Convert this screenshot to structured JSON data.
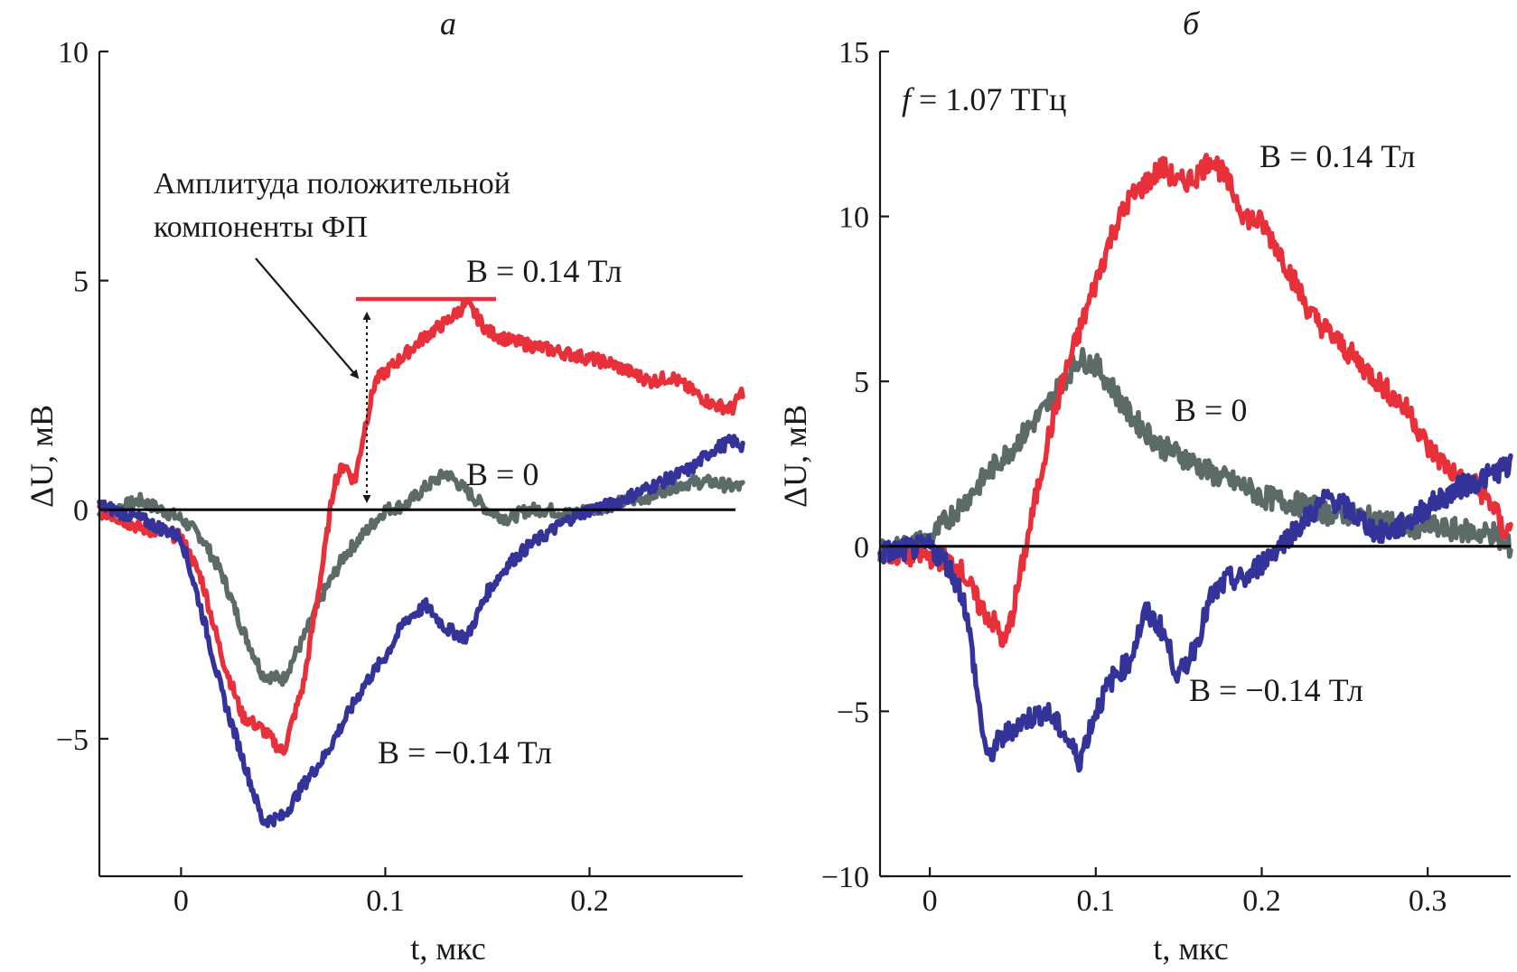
{
  "colors": {
    "red": "#e8303a",
    "blue": "#33339a",
    "gray": "#5c6b68",
    "axis": "#1a1a1a"
  },
  "chart_data": [
    {
      "type": "line",
      "panel": "a",
      "title": "а",
      "xlabel": "t, мкс",
      "ylabel": "ΔU, мВ",
      "xlim": [
        -0.04,
        0.275
      ],
      "ylim": [
        -8,
        10
      ],
      "xticks": [
        0,
        0.1,
        0.2
      ],
      "xtick_labels": [
        "0",
        "0.1",
        "0.2"
      ],
      "yticks": [
        -5,
        0,
        5,
        10
      ],
      "ytick_labels": [
        "−5",
        "0",
        "5",
        "10"
      ],
      "series": [
        {
          "name": "B = 0.14 Тл",
          "color_key": "red",
          "x": [
            -0.04,
            -0.02,
            0.0,
            0.01,
            0.02,
            0.03,
            0.04,
            0.05,
            0.06,
            0.07,
            0.075,
            0.08,
            0.085,
            0.09,
            0.095,
            0.1,
            0.11,
            0.12,
            0.13,
            0.14,
            0.15,
            0.16,
            0.17,
            0.18,
            0.19,
            0.2,
            0.21,
            0.22,
            0.23,
            0.24,
            0.25,
            0.26,
            0.27,
            0.275
          ],
          "y": [
            0.0,
            -0.4,
            -0.6,
            -1.5,
            -3.2,
            -4.5,
            -4.8,
            -5.3,
            -3.8,
            -1.0,
            0.6,
            1.0,
            0.6,
            1.8,
            2.8,
            3.0,
            3.4,
            3.8,
            4.1,
            4.5,
            3.9,
            3.7,
            3.6,
            3.5,
            3.4,
            3.3,
            3.2,
            3.0,
            2.8,
            2.9,
            2.6,
            2.3,
            2.2,
            2.6
          ]
        },
        {
          "name": "B = 0",
          "color_key": "gray",
          "x": [
            -0.04,
            -0.02,
            0.0,
            0.01,
            0.02,
            0.03,
            0.04,
            0.05,
            0.06,
            0.07,
            0.08,
            0.09,
            0.1,
            0.11,
            0.12,
            0.13,
            0.14,
            0.15,
            0.16,
            0.17,
            0.18,
            0.19,
            0.2,
            0.21,
            0.22,
            0.23,
            0.24,
            0.25,
            0.26,
            0.27,
            0.275
          ],
          "y": [
            -0.1,
            0.2,
            -0.2,
            -0.6,
            -1.4,
            -2.6,
            -3.6,
            -3.7,
            -2.8,
            -1.8,
            -1.0,
            -0.5,
            0.0,
            0.1,
            0.5,
            0.8,
            0.4,
            0.0,
            -0.2,
            0.0,
            0.0,
            -0.1,
            0.0,
            0.1,
            0.2,
            0.3,
            0.5,
            0.6,
            0.6,
            0.5,
            0.5
          ]
        },
        {
          "name": "B = −0.14 Тл",
          "color_key": "blue",
          "x": [
            -0.04,
            -0.02,
            0.0,
            0.01,
            0.02,
            0.03,
            0.04,
            0.05,
            0.06,
            0.07,
            0.08,
            0.09,
            0.1,
            0.11,
            0.12,
            0.13,
            0.14,
            0.15,
            0.16,
            0.17,
            0.18,
            0.19,
            0.2,
            0.21,
            0.22,
            0.23,
            0.24,
            0.25,
            0.26,
            0.27,
            0.275
          ],
          "y": [
            0.1,
            -0.2,
            -0.6,
            -2.2,
            -4.0,
            -5.4,
            -6.8,
            -6.7,
            -6.0,
            -5.4,
            -4.6,
            -3.8,
            -3.2,
            -2.4,
            -2.1,
            -2.6,
            -2.8,
            -1.8,
            -1.2,
            -0.8,
            -0.5,
            -0.2,
            0.0,
            0.1,
            0.3,
            0.5,
            0.7,
            0.9,
            1.3,
            1.5,
            1.4
          ]
        }
      ],
      "annotations": {
        "amplitude_line1": "Амплитуда положительной",
        "amplitude_line2": "компоненты ФП",
        "label_red": "B = 0.14 Тл",
        "label_gray": "B = 0",
        "label_blue": "B = −0.14 Тл"
      }
    },
    {
      "type": "line",
      "panel": "б",
      "title": "б",
      "xlabel": "t, мкс",
      "ylabel": "ΔU, мВ",
      "xlim": [
        -0.03,
        0.35
      ],
      "ylim": [
        -10,
        15
      ],
      "xticks": [
        0,
        0.1,
        0.2,
        0.3
      ],
      "xtick_labels": [
        "0",
        "0.1",
        "0.2",
        "0.3"
      ],
      "yticks": [
        -10,
        -5,
        0,
        5,
        10,
        15
      ],
      "ytick_labels": [
        "−10",
        "−5",
        "0",
        "5",
        "10",
        "15"
      ],
      "series": [
        {
          "name": "B = 0.14 Тл",
          "color_key": "red",
          "x": [
            -0.03,
            0.0,
            0.01,
            0.02,
            0.03,
            0.04,
            0.045,
            0.05,
            0.06,
            0.07,
            0.08,
            0.09,
            0.1,
            0.11,
            0.12,
            0.13,
            0.14,
            0.15,
            0.16,
            0.17,
            0.18,
            0.19,
            0.2,
            0.21,
            0.22,
            0.23,
            0.24,
            0.25,
            0.26,
            0.27,
            0.28,
            0.29,
            0.3,
            0.31,
            0.32,
            0.33,
            0.34,
            0.345
          ],
          "y": [
            -0.2,
            -0.3,
            -0.4,
            -0.8,
            -1.8,
            -2.4,
            -3.0,
            -2.0,
            0.5,
            3.0,
            5.0,
            6.5,
            8.0,
            9.5,
            10.5,
            11.0,
            11.5,
            11.0,
            11.2,
            11.8,
            11.0,
            10.0,
            9.8,
            9.0,
            8.0,
            7.0,
            6.5,
            6.0,
            5.5,
            5.0,
            4.5,
            4.0,
            3.0,
            2.5,
            2.0,
            1.8,
            1.2,
            0.5
          ]
        },
        {
          "name": "B = 0",
          "color_key": "gray",
          "x": [
            -0.03,
            0.0,
            0.01,
            0.02,
            0.03,
            0.04,
            0.05,
            0.06,
            0.07,
            0.08,
            0.09,
            0.1,
            0.11,
            0.12,
            0.13,
            0.14,
            0.15,
            0.16,
            0.17,
            0.18,
            0.19,
            0.2,
            0.21,
            0.22,
            0.23,
            0.24,
            0.25,
            0.26,
            0.27,
            0.28,
            0.29,
            0.3,
            0.31,
            0.32,
            0.33,
            0.34,
            0.345
          ],
          "y": [
            -0.2,
            0.2,
            0.8,
            1.3,
            1.9,
            2.5,
            3.0,
            3.6,
            4.2,
            5.0,
            5.7,
            5.5,
            4.8,
            4.0,
            3.5,
            3.0,
            2.8,
            2.5,
            2.2,
            2.0,
            1.8,
            1.5,
            1.4,
            1.3,
            1.2,
            1.0,
            1.0,
            0.9,
            0.8,
            0.7,
            0.6,
            0.6,
            0.5,
            0.5,
            0.4,
            0.4,
            0.0
          ]
        },
        {
          "name": "B = −0.14 Тл",
          "color_key": "blue",
          "x": [
            -0.03,
            0.0,
            0.01,
            0.02,
            0.025,
            0.03,
            0.035,
            0.04,
            0.05,
            0.06,
            0.07,
            0.08,
            0.09,
            0.1,
            0.11,
            0.12,
            0.13,
            0.14,
            0.15,
            0.16,
            0.17,
            0.18,
            0.19,
            0.2,
            0.21,
            0.22,
            0.23,
            0.24,
            0.25,
            0.26,
            0.27,
            0.28,
            0.29,
            0.3,
            0.31,
            0.32,
            0.33,
            0.34,
            0.345
          ],
          "y": [
            -0.2,
            0.0,
            -0.5,
            -1.5,
            -3.0,
            -5.0,
            -6.5,
            -6.0,
            -5.5,
            -5.2,
            -5.0,
            -5.6,
            -6.5,
            -5.0,
            -4.0,
            -3.5,
            -2.0,
            -2.5,
            -4.0,
            -3.0,
            -1.5,
            -1.0,
            -1.0,
            -0.5,
            0.0,
            0.5,
            1.0,
            1.5,
            1.2,
            0.8,
            0.4,
            0.5,
            0.8,
            1.2,
            1.5,
            1.8,
            2.0,
            2.2,
            2.4
          ]
        }
      ],
      "annotations": {
        "freq_f": "f",
        "freq_rest": " = 1.07 ТГц",
        "label_red": "B = 0.14 Тл",
        "label_gray": "B = 0",
        "label_blue": "B = −0.14 Тл"
      }
    }
  ]
}
